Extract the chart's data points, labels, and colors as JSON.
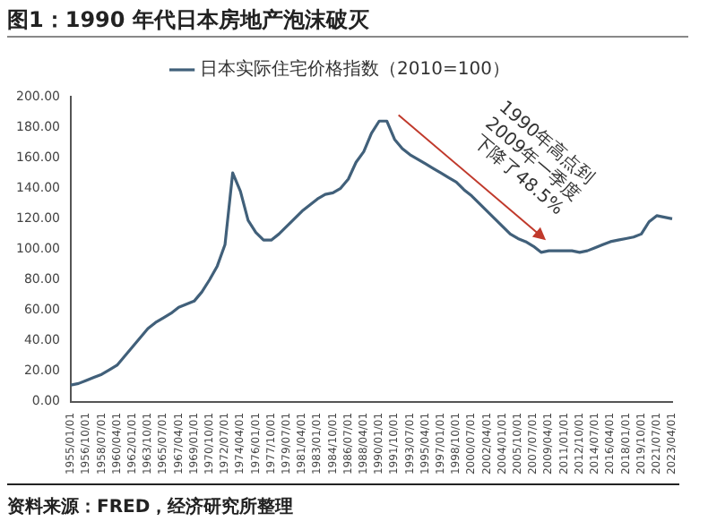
{
  "chart_data": {
    "type": "line",
    "title": "图1：1990 年代日本房地产泡沫破灭",
    "categories": [
      "1955/01/01",
      null,
      "1956/10/01",
      null,
      "1958/07/01",
      null,
      "1960/04/01",
      null,
      "1962/01/01",
      null,
      "1963/10/01",
      null,
      "1965/07/01",
      null,
      "1967/04/01",
      null,
      "1969/01/01",
      null,
      "1970/10/01",
      null,
      "1972/07/01",
      null,
      "1974/04/01",
      null,
      "1976/01/01",
      null,
      "1977/10/01",
      null,
      "1979/07/01",
      null,
      "1981/04/01",
      null,
      "1983/01/01",
      null,
      "1984/10/01",
      null,
      "1986/07/01",
      null,
      "1988/04/01",
      null,
      "1990/01/01",
      null,
      "1991/10/01",
      null,
      "1993/07/01",
      null,
      "1995/04/01",
      null,
      "1997/01/01",
      null,
      "1998/10/01",
      null,
      "2000/07/01",
      null,
      "2002/04/01",
      null,
      "2004/01/01",
      null,
      "2005/10/01",
      null,
      "2007/07/01",
      null,
      "2009/04/01",
      null,
      "2011/01/01",
      null,
      "2012/10/01",
      null,
      "2014/07/01",
      null,
      "2016/04/01",
      null,
      "2018/01/01",
      null,
      "2019/10/01",
      null,
      "2021/07/01",
      null,
      "2023/04/01"
    ],
    "series": [
      {
        "name": "日本实际住宅价格指数（2010=100）",
        "color": "#41607a",
        "values": [
          11,
          12,
          14,
          16,
          18,
          21,
          24,
          30,
          36,
          42,
          48,
          52,
          55,
          58,
          62,
          64,
          66,
          72,
          80,
          89,
          103,
          150,
          138,
          119,
          111,
          106,
          106,
          110,
          115,
          120,
          125,
          129,
          133,
          136,
          137,
          140,
          146,
          157,
          164,
          176,
          184,
          184,
          172,
          166,
          162,
          159,
          156,
          153,
          150,
          147,
          144,
          139,
          135,
          130,
          125,
          120,
          115,
          110,
          107,
          105,
          102,
          98,
          99,
          99,
          99,
          99,
          98,
          99,
          101,
          103,
          105,
          106,
          107,
          108,
          110,
          118,
          122,
          121,
          120
        ]
      }
    ],
    "ylim": [
      0,
      200
    ],
    "yticks": [
      {
        "value": 0,
        "label": "0.00"
      },
      {
        "value": 20,
        "label": "20.00"
      },
      {
        "value": 40,
        "label": "40.00"
      },
      {
        "value": 60,
        "label": "60.00"
      },
      {
        "value": 80,
        "label": "80.00"
      },
      {
        "value": 100,
        "label": "100.00"
      },
      {
        "value": 120,
        "label": "120.00"
      },
      {
        "value": 140,
        "label": "140.00"
      },
      {
        "value": 160,
        "label": "160.00"
      },
      {
        "value": 180,
        "label": "180.00"
      },
      {
        "value": 200,
        "label": "200.00"
      }
    ],
    "legend": "top",
    "marker": "none",
    "line_style": "solid",
    "annotations": [
      "1990年高点到2009年一季度下降了48.5%",
      "资料来源：FRED，经济研究所整理"
    ]
  }
}
